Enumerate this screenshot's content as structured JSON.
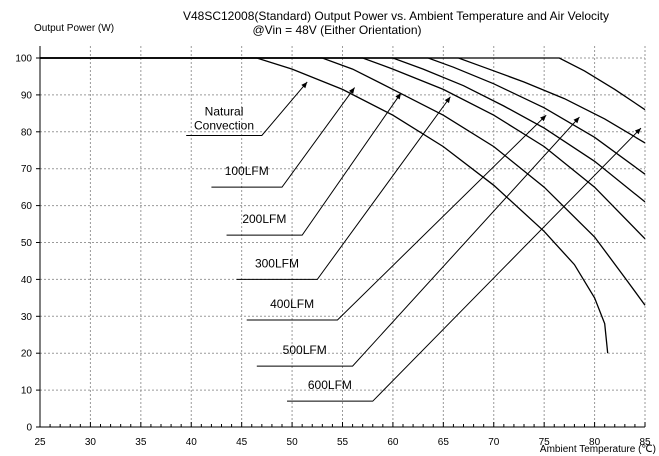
{
  "chart_data": {
    "type": "line",
    "title_line1": "V48SC12008(Standard)  Output Power vs. Ambient Temperature and Air Velocity",
    "title_line2": "@Vin = 48V (Either Orientation)",
    "ylabel": "Output Power (W)",
    "xlabel": "Ambient Temperature (℃)",
    "xlim": [
      25,
      85
    ],
    "ylim": [
      0,
      100
    ],
    "xticks": [
      25,
      30,
      35,
      40,
      45,
      50,
      55,
      60,
      65,
      70,
      75,
      80,
      85
    ],
    "yticks": [
      0,
      10,
      20,
      30,
      40,
      50,
      60,
      70,
      80,
      90,
      100
    ],
    "grid": true,
    "series": [
      {
        "name": "Natural Convection",
        "points": [
          [
            25,
            100
          ],
          [
            46.5,
            100
          ],
          [
            50,
            97
          ],
          [
            55,
            91.5
          ],
          [
            60,
            84.5
          ],
          [
            65,
            76
          ],
          [
            70,
            65.5
          ],
          [
            75,
            53
          ],
          [
            78,
            44
          ],
          [
            80,
            35
          ],
          [
            81,
            28
          ],
          [
            81.3,
            20
          ]
        ]
      },
      {
        "name": "100LFM",
        "points": [
          [
            25,
            100
          ],
          [
            53,
            100
          ],
          [
            56,
            97
          ],
          [
            60,
            91.5
          ],
          [
            65,
            84.5
          ],
          [
            70,
            76
          ],
          [
            75,
            65
          ],
          [
            80,
            51.5
          ],
          [
            83,
            40.5
          ],
          [
            85,
            33
          ]
        ]
      },
      {
        "name": "200LFM",
        "points": [
          [
            25,
            100
          ],
          [
            57,
            100
          ],
          [
            60,
            97
          ],
          [
            65,
            91.5
          ],
          [
            70,
            84.5
          ],
          [
            75,
            76
          ],
          [
            80,
            65
          ],
          [
            85,
            51
          ]
        ]
      },
      {
        "name": "300LFM",
        "points": [
          [
            25,
            100
          ],
          [
            60,
            100
          ],
          [
            63,
            97
          ],
          [
            67,
            92.5
          ],
          [
            71,
            87
          ],
          [
            75,
            81
          ],
          [
            80,
            72
          ],
          [
            85,
            61
          ]
        ]
      },
      {
        "name": "400LFM",
        "points": [
          [
            25,
            100
          ],
          [
            63.5,
            100
          ],
          [
            66,
            97.5
          ],
          [
            70,
            93
          ],
          [
            75,
            86.5
          ],
          [
            80,
            78.5
          ],
          [
            85,
            68.5
          ]
        ]
      },
      {
        "name": "500LFM",
        "points": [
          [
            25,
            100
          ],
          [
            66.5,
            100
          ],
          [
            69,
            97.5
          ],
          [
            73,
            93.5
          ],
          [
            77,
            89
          ],
          [
            81,
            83.5
          ],
          [
            85,
            77
          ]
        ]
      },
      {
        "name": "600LFM",
        "points": [
          [
            25,
            100
          ],
          [
            76.5,
            100
          ],
          [
            79,
            96.5
          ],
          [
            82,
            91.5
          ],
          [
            85,
            86
          ]
        ]
      }
    ],
    "annotations": [
      {
        "label": "Natural",
        "label2": "Convection",
        "elbow": [
          39.5,
          79
        ],
        "bend": [
          47,
          79
        ],
        "arrow": [
          51.5,
          93.5
        ]
      },
      {
        "label": "100LFM",
        "elbow": [
          42,
          65
        ],
        "bend": [
          49,
          65
        ],
        "arrow": [
          56.2,
          92
        ]
      },
      {
        "label": "200LFM",
        "elbow": [
          43.5,
          52
        ],
        "bend": [
          51,
          52
        ],
        "arrow": [
          60.8,
          90.5
        ]
      },
      {
        "label": "300LFM",
        "elbow": [
          44.5,
          40
        ],
        "bend": [
          52.5,
          40
        ],
        "arrow": [
          65.7,
          89.5
        ]
      },
      {
        "label": "400LFM",
        "elbow": [
          45.5,
          29
        ],
        "bend": [
          54.5,
          29
        ],
        "arrow": [
          75.2,
          84.5
        ]
      },
      {
        "label": "500LFM",
        "elbow": [
          46.5,
          16.5
        ],
        "bend": [
          56,
          16.5
        ],
        "arrow": [
          78.5,
          84
        ]
      },
      {
        "label": "600LFM",
        "elbow": [
          49.5,
          7
        ],
        "bend": [
          58,
          7
        ],
        "arrow": [
          84.6,
          81
        ]
      }
    ]
  }
}
